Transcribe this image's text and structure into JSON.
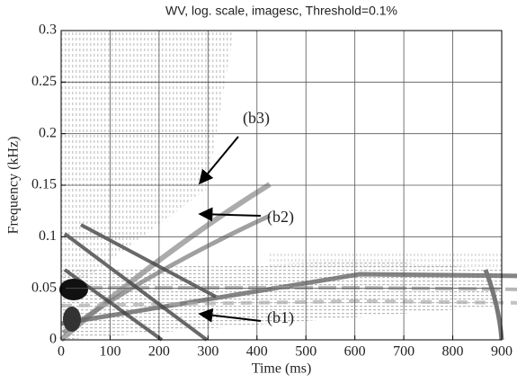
{
  "chart_data": {
    "type": "image",
    "title": "WV, log. scale, imagesc, Threshold=0.1%",
    "x_label": "Time (ms)",
    "y_label": "Frequency (kHz)",
    "xlim": [
      0,
      900
    ],
    "ylim": [
      0,
      0.3
    ],
    "xticks": [
      0,
      100,
      200,
      300,
      400,
      500,
      600,
      700,
      800,
      900
    ],
    "yticks": [
      0,
      0.05,
      0.1,
      0.15,
      0.2,
      0.25,
      0.3
    ],
    "grid": true,
    "annotations": [
      "(b3)",
      "(b2)",
      "(b1)"
    ]
  }
}
